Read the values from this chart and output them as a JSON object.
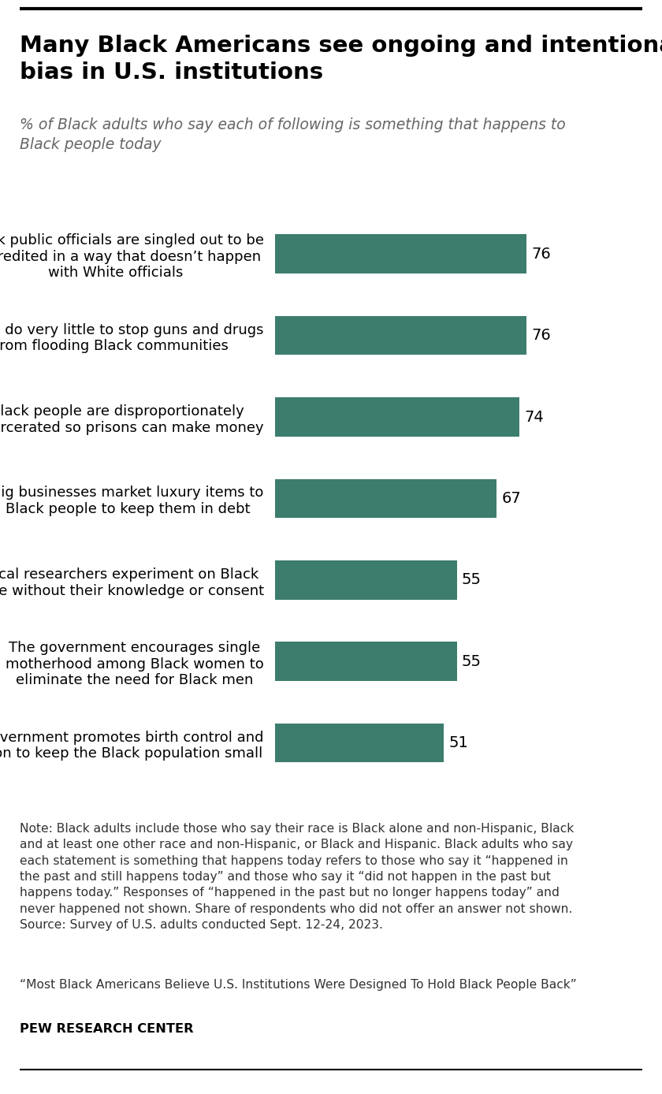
{
  "title": "Many Black Americans see ongoing and intentional\nbias in U.S. institutions",
  "subtitle": "% of Black adults who say each of following is something that happens to\nBlack people today",
  "categories": [
    "Black public officials are singled out to be\ndiscredited in a way that doesn’t happen\nwith White officials",
    "Police do very little to stop guns and drugs\nfrom flooding Black communities",
    "Black people are disproportionately\nincarcerated so prisons can make money",
    "Big businesses market luxury items to\nBlack people to keep them in debt",
    "Medical researchers experiment on Black\npeople without their knowledge or consent",
    "The government encourages single\nmotherhood among Black women to\neliminate the need for Black men",
    "The government promotes birth control and\nabortion to keep the Black population small"
  ],
  "values": [
    76,
    76,
    74,
    67,
    55,
    55,
    51
  ],
  "bar_color": "#3d7d6e",
  "background_color": "#ffffff",
  "note_part1": "Note: Black adults include those who say their race is Black alone and non-Hispanic, Black\nand at least one other race and non-Hispanic, or Black and Hispanic. Black adults who say\neach statement is something that happens today refers to those who say it “happened in\nthe past and still happens today” and those who say it “did not happen in the past but\nhappens today.” Responses of “happened in the past but no longer happens today” and\nnever happened not shown. Share of respondents who did not offer an answer not shown.\nSource: Survey of U.S. adults conducted Sept. 12-24, 2023.",
  "note_part2": "“Most Black Americans Believe U.S. Institutions Were Designed To Hold Black People Back”",
  "source_bold": "PEW RESEARCH CENTER",
  "xlim": [
    0,
    100
  ],
  "title_fontsize": 21,
  "subtitle_fontsize": 13.5,
  "label_fontsize": 13,
  "value_fontsize": 14,
  "note_fontsize": 11.2
}
